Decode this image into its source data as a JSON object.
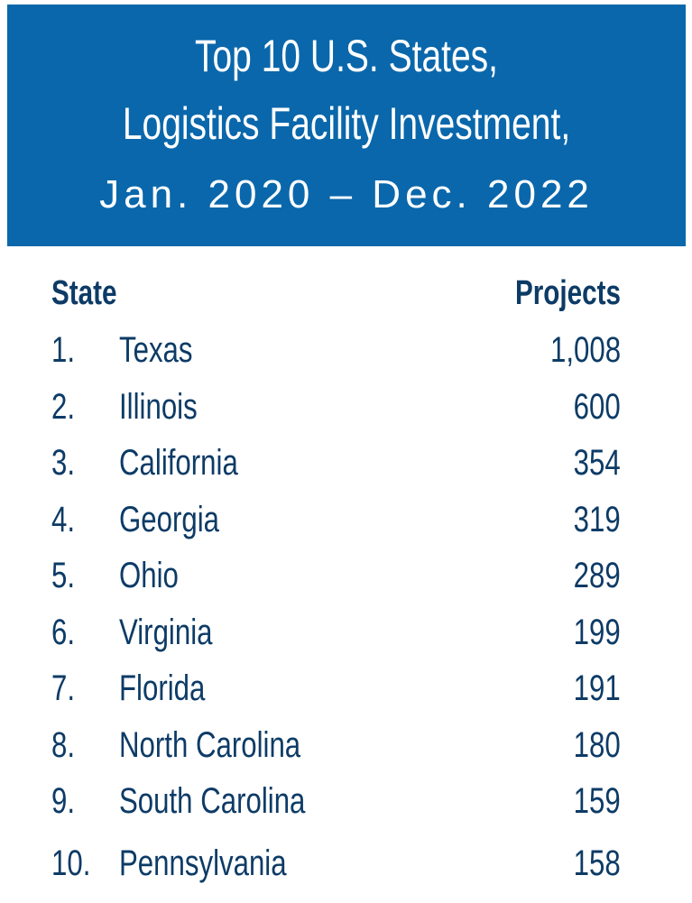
{
  "header": {
    "title_line1": "Top 10 U.S. States,",
    "title_line2": "Logistics Facility Investment,",
    "subtitle": "Jan. 2020 – Dec. 2022"
  },
  "colors": {
    "header_bg": "#0a67ab",
    "header_text": "#ffffff",
    "table_text": "#0d3b66"
  },
  "chart_data": {
    "type": "table",
    "title": "Top 10 U.S. States, Logistics Facility Investment, Jan. 2020 – Dec. 2022",
    "columns": [
      "State",
      "Projects"
    ],
    "rows": [
      {
        "rank": "1.",
        "state": "Texas",
        "projects": "1,008"
      },
      {
        "rank": "2.",
        "state": "Illinois",
        "projects": "600"
      },
      {
        "rank": "3.",
        "state": "California",
        "projects": "354"
      },
      {
        "rank": "4.",
        "state": "Georgia",
        "projects": "319"
      },
      {
        "rank": "5.",
        "state": "Ohio",
        "projects": "289"
      },
      {
        "rank": "6.",
        "state": "Virginia",
        "projects": "199"
      },
      {
        "rank": "7.",
        "state": "Florida",
        "projects": "191"
      },
      {
        "rank": "8.",
        "state": "North Carolina",
        "projects": "180"
      },
      {
        "rank": "9.",
        "state": "South Carolina",
        "projects": "159"
      },
      {
        "rank": "10.",
        "state": "Pennsylvania",
        "projects": "158"
      }
    ]
  }
}
